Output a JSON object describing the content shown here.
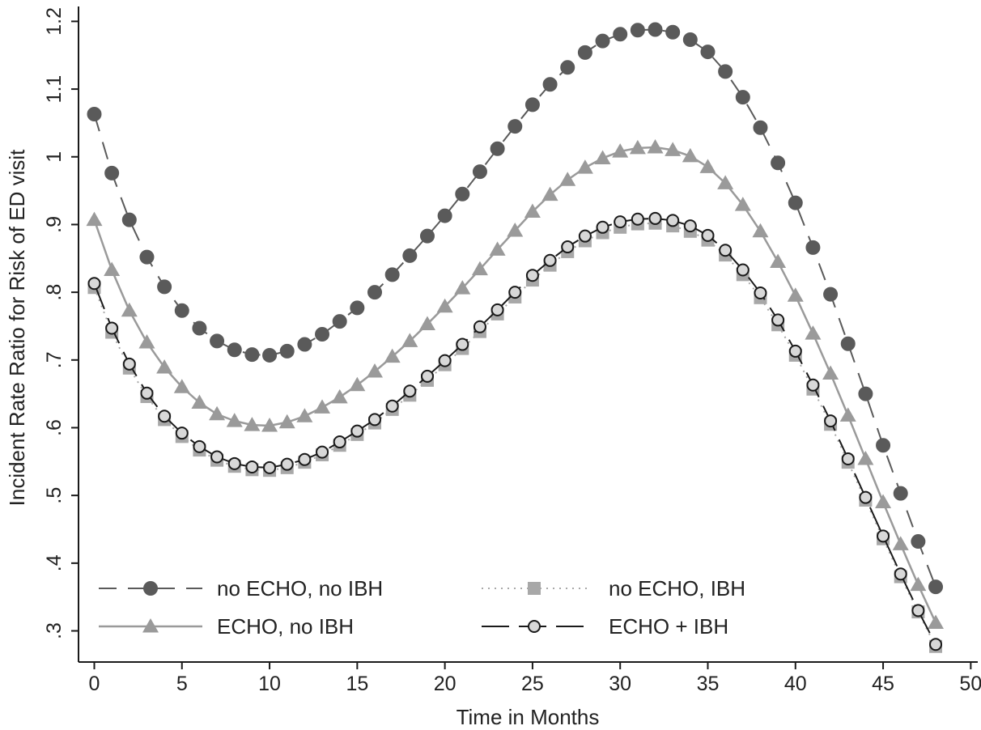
{
  "chart_data": {
    "type": "line",
    "xlabel": "Time in Months",
    "ylabel": "Incident Rate Ratio for Risk of ED visit",
    "xlim": [
      -0.9,
      50.4
    ],
    "ylim": [
      0.254,
      1.222
    ],
    "xticks": [
      0,
      5,
      10,
      15,
      20,
      25,
      30,
      35,
      40,
      45,
      50
    ],
    "xtick_labels": [
      "0",
      "5",
      "10",
      "15",
      "20",
      "25",
      "30",
      "35",
      "40",
      "45",
      "50"
    ],
    "yticks": [
      0.3,
      0.4,
      0.5,
      0.6,
      0.7,
      0.8,
      0.9,
      1.0,
      1.1,
      1.2
    ],
    "ytick_labels": [
      ".3",
      ".4",
      ".5",
      ".6",
      ".7",
      ".8",
      ".9",
      "1",
      "1.1",
      "1.2"
    ],
    "grid": false,
    "legend_position": "bottom-left",
    "x": [
      0,
      1,
      2,
      3,
      4,
      5,
      6,
      7,
      8,
      9,
      10,
      11,
      12,
      13,
      14,
      15,
      16,
      17,
      18,
      19,
      20,
      21,
      22,
      23,
      24,
      25,
      26,
      27,
      28,
      29,
      30,
      31,
      32,
      33,
      34,
      35,
      36,
      37,
      38,
      39,
      40,
      41,
      42,
      43,
      44,
      45,
      46,
      47,
      48
    ],
    "series": [
      {
        "name": "no ECHO, no IBH",
        "color": "#5a5a5a",
        "line": "dashed",
        "marker": "filled-circle",
        "values": [
          1.063,
          0.976,
          0.907,
          0.852,
          0.808,
          0.773,
          0.747,
          0.728,
          0.715,
          0.708,
          0.707,
          0.713,
          0.723,
          0.738,
          0.757,
          0.777,
          0.8,
          0.826,
          0.854,
          0.883,
          0.913,
          0.945,
          0.978,
          1.012,
          1.045,
          1.077,
          1.107,
          1.132,
          1.154,
          1.171,
          1.181,
          1.187,
          1.188,
          1.184,
          1.173,
          1.155,
          1.126,
          1.088,
          1.043,
          0.991,
          0.932,
          0.866,
          0.797,
          0.724,
          0.65,
          0.574,
          0.503,
          0.432,
          0.365
        ]
      },
      {
        "name": "no ECHO, IBH",
        "color": "#a8a8a8",
        "line": "dotted",
        "marker": "filled-square",
        "values": [
          0.807,
          0.741,
          0.688,
          0.646,
          0.612,
          0.587,
          0.567,
          0.552,
          0.543,
          0.538,
          0.537,
          0.541,
          0.549,
          0.56,
          0.574,
          0.59,
          0.607,
          0.627,
          0.648,
          0.67,
          0.693,
          0.717,
          0.742,
          0.768,
          0.793,
          0.818,
          0.84,
          0.86,
          0.876,
          0.888,
          0.896,
          0.901,
          0.902,
          0.898,
          0.89,
          0.877,
          0.855,
          0.826,
          0.792,
          0.752,
          0.707,
          0.657,
          0.605,
          0.549,
          0.493,
          0.436,
          0.38,
          0.328,
          0.277
        ]
      },
      {
        "name": "ECHO, no IBH",
        "color": "#9a9a9a",
        "line": "solid",
        "marker": "filled-triangle",
        "values": [
          0.907,
          0.833,
          0.773,
          0.726,
          0.689,
          0.66,
          0.637,
          0.62,
          0.61,
          0.604,
          0.603,
          0.608,
          0.617,
          0.63,
          0.645,
          0.663,
          0.683,
          0.705,
          0.728,
          0.753,
          0.779,
          0.806,
          0.834,
          0.863,
          0.891,
          0.919,
          0.944,
          0.966,
          0.984,
          0.998,
          1.008,
          1.013,
          1.014,
          1.01,
          1.001,
          0.985,
          0.961,
          0.929,
          0.89,
          0.845,
          0.795,
          0.739,
          0.68,
          0.618,
          0.554,
          0.49,
          0.428,
          0.368,
          0.312
        ]
      },
      {
        "name": "ECHO + IBH",
        "color": "#1a1a1a",
        "line": "longdash",
        "marker": "hollow-circle",
        "values": [
          0.813,
          0.747,
          0.694,
          0.651,
          0.617,
          0.592,
          0.572,
          0.557,
          0.547,
          0.542,
          0.541,
          0.546,
          0.553,
          0.564,
          0.579,
          0.595,
          0.612,
          0.632,
          0.654,
          0.676,
          0.699,
          0.723,
          0.749,
          0.774,
          0.8,
          0.825,
          0.847,
          0.867,
          0.883,
          0.896,
          0.904,
          0.908,
          0.909,
          0.906,
          0.898,
          0.884,
          0.862,
          0.833,
          0.799,
          0.759,
          0.713,
          0.663,
          0.61,
          0.554,
          0.497,
          0.44,
          0.384,
          0.33,
          0.28
        ]
      }
    ]
  }
}
